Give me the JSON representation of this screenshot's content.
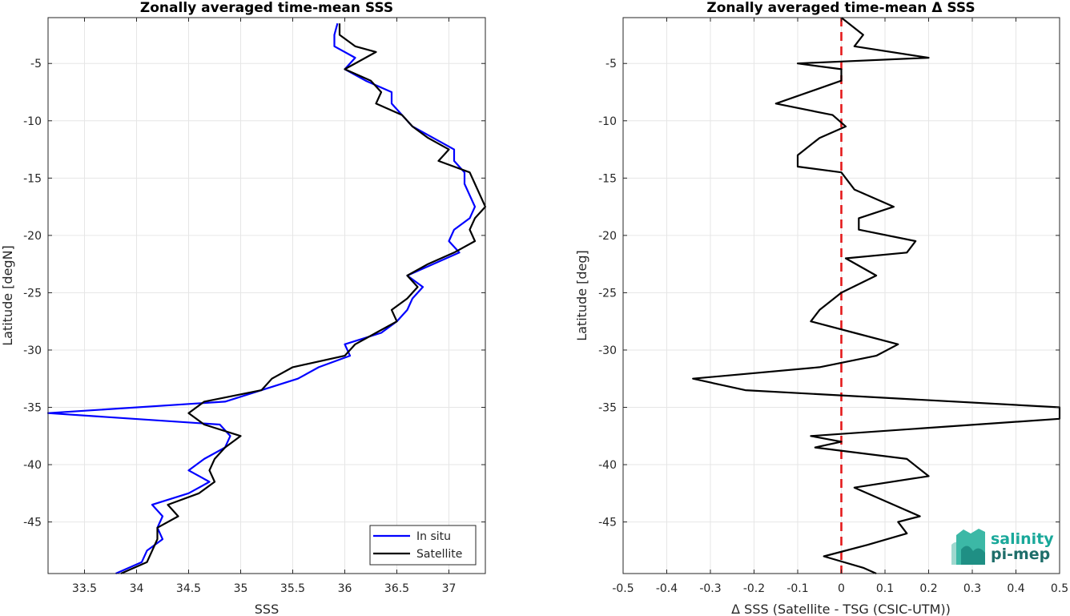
{
  "chart_data": [
    {
      "type": "line",
      "title": "Zonally averaged time-mean SSS",
      "xlabel": "SSS",
      "ylabel": "Latitude [degN]",
      "xlim": [
        33.15,
        37.35
      ],
      "ylim": [
        -49.5,
        -1
      ],
      "xticks": [
        33.5,
        34,
        34.5,
        35,
        35.5,
        36,
        36.5,
        37
      ],
      "xtick_labels": [
        "33.5",
        "34",
        "34.5",
        "35",
        "35.5",
        "36",
        "36.5",
        "37"
      ],
      "yticks": [
        -5,
        -10,
        -15,
        -20,
        -25,
        -30,
        -35,
        -40,
        -45
      ],
      "ytick_labels": [
        "-5",
        "-10",
        "-15",
        "-20",
        "-25",
        "-30",
        "-35",
        "-40",
        "-45"
      ],
      "grid": true,
      "legend_position": "bottom-right",
      "series": [
        {
          "name": "In situ",
          "color": "#0000ff",
          "points": [
            [
              35.93,
              -1.5
            ],
            [
              35.9,
              -2.5
            ],
            [
              35.9,
              -3.5
            ],
            [
              36.1,
              -4.5
            ],
            [
              36.0,
              -5.5
            ],
            [
              36.2,
              -6.5
            ],
            [
              36.45,
              -7.5
            ],
            [
              36.45,
              -8.5
            ],
            [
              36.55,
              -9.5
            ],
            [
              36.65,
              -10.5
            ],
            [
              36.85,
              -11.5
            ],
            [
              37.05,
              -12.5
            ],
            [
              37.05,
              -13.5
            ],
            [
              37.15,
              -14.5
            ],
            [
              37.15,
              -15.5
            ],
            [
              37.2,
              -16.5
            ],
            [
              37.25,
              -17.5
            ],
            [
              37.2,
              -18.5
            ],
            [
              37.05,
              -19.5
            ],
            [
              37.0,
              -20.5
            ],
            [
              37.1,
              -21.5
            ],
            [
              36.85,
              -22.5
            ],
            [
              36.6,
              -23.5
            ],
            [
              36.75,
              -24.5
            ],
            [
              36.65,
              -25.5
            ],
            [
              36.6,
              -26.5
            ],
            [
              36.5,
              -27.5
            ],
            [
              36.35,
              -28.5
            ],
            [
              36.0,
              -29.5
            ],
            [
              36.05,
              -30.5
            ],
            [
              35.75,
              -31.5
            ],
            [
              35.55,
              -32.5
            ],
            [
              35.2,
              -33.5
            ],
            [
              34.85,
              -34.5
            ],
            [
              33.15,
              -35.5
            ],
            [
              34.8,
              -36.5
            ],
            [
              34.9,
              -37.5
            ],
            [
              34.85,
              -38.5
            ],
            [
              34.65,
              -39.5
            ],
            [
              34.5,
              -40.5
            ],
            [
              34.7,
              -41.5
            ],
            [
              34.5,
              -42.5
            ],
            [
              34.15,
              -43.5
            ],
            [
              34.25,
              -44.5
            ],
            [
              34.2,
              -45.5
            ],
            [
              34.25,
              -46.5
            ],
            [
              34.1,
              -47.5
            ],
            [
              34.05,
              -48.5
            ],
            [
              33.8,
              -49.5
            ]
          ]
        },
        {
          "name": "Satellite",
          "color": "#000000",
          "points": [
            [
              35.95,
              -1.5
            ],
            [
              35.95,
              -2.5
            ],
            [
              36.1,
              -3.5
            ],
            [
              36.3,
              -4.0
            ],
            [
              36.0,
              -5.5
            ],
            [
              36.25,
              -6.5
            ],
            [
              36.35,
              -7.5
            ],
            [
              36.3,
              -8.5
            ],
            [
              36.55,
              -9.5
            ],
            [
              36.65,
              -10.5
            ],
            [
              36.8,
              -11.5
            ],
            [
              37.0,
              -12.5
            ],
            [
              36.9,
              -13.5
            ],
            [
              37.2,
              -14.5
            ],
            [
              37.25,
              -15.5
            ],
            [
              37.3,
              -16.5
            ],
            [
              37.35,
              -17.5
            ],
            [
              37.25,
              -18.5
            ],
            [
              37.2,
              -19.5
            ],
            [
              37.25,
              -20.5
            ],
            [
              37.05,
              -21.5
            ],
            [
              36.8,
              -22.5
            ],
            [
              36.6,
              -23.5
            ],
            [
              36.7,
              -24.5
            ],
            [
              36.6,
              -25.5
            ],
            [
              36.45,
              -26.5
            ],
            [
              36.5,
              -27.5
            ],
            [
              36.3,
              -28.5
            ],
            [
              36.1,
              -29.5
            ],
            [
              36.0,
              -30.5
            ],
            [
              35.5,
              -31.5
            ],
            [
              35.3,
              -32.5
            ],
            [
              35.2,
              -33.5
            ],
            [
              34.65,
              -34.5
            ],
            [
              34.5,
              -35.5
            ],
            [
              34.65,
              -36.5
            ],
            [
              35.0,
              -37.5
            ],
            [
              34.85,
              -38.5
            ],
            [
              34.75,
              -39.5
            ],
            [
              34.7,
              -40.5
            ],
            [
              34.75,
              -41.5
            ],
            [
              34.6,
              -42.5
            ],
            [
              34.3,
              -43.5
            ],
            [
              34.4,
              -44.5
            ],
            [
              34.2,
              -45.5
            ],
            [
              34.2,
              -46.5
            ],
            [
              34.15,
              -47.5
            ],
            [
              34.1,
              -48.5
            ],
            [
              33.85,
              -49.5
            ]
          ]
        }
      ]
    },
    {
      "type": "line",
      "title": "Zonally averaged time-mean Δ SSS",
      "xlabel": "Δ SSS (Satellite - TSG (CSIC-UTM))",
      "ylabel": "Latitude [deg]",
      "xlim": [
        -0.5,
        0.5
      ],
      "ylim": [
        -49.5,
        -1
      ],
      "xticks": [
        -0.5,
        -0.4,
        -0.3,
        -0.2,
        -0.1,
        0,
        0.1,
        0.2,
        0.3,
        0.4,
        0.5
      ],
      "xtick_labels": [
        "-0.5",
        "-0.4",
        "-0.3",
        "-0.2",
        "-0.1",
        "0",
        "0.1",
        "0.2",
        "0.3",
        "0.4",
        "0.5"
      ],
      "yticks": [
        -5,
        -10,
        -15,
        -20,
        -25,
        -30,
        -35,
        -40,
        -45
      ],
      "ytick_labels": [
        "-5",
        "-10",
        "-15",
        "-20",
        "-25",
        "-30",
        "-35",
        "-40",
        "-45"
      ],
      "grid": true,
      "reference_line": {
        "x": 0,
        "color": "#e41a1c",
        "style": "dashed"
      },
      "series": [
        {
          "color": "#000000",
          "points": [
            [
              0.0,
              -1.0
            ],
            [
              0.05,
              -2.5
            ],
            [
              0.03,
              -3.5
            ],
            [
              0.2,
              -4.5
            ],
            [
              -0.1,
              -5.0
            ],
            [
              0.0,
              -5.5
            ],
            [
              0.0,
              -6.5
            ],
            [
              -0.15,
              -8.5
            ],
            [
              -0.02,
              -9.5
            ],
            [
              0.01,
              -10.5
            ],
            [
              -0.05,
              -11.5
            ],
            [
              -0.1,
              -13.0
            ],
            [
              -0.1,
              -14.0
            ],
            [
              0.0,
              -14.5
            ],
            [
              0.03,
              -16.0
            ],
            [
              0.12,
              -17.5
            ],
            [
              0.04,
              -18.5
            ],
            [
              0.04,
              -19.5
            ],
            [
              0.17,
              -20.5
            ],
            [
              0.15,
              -21.5
            ],
            [
              0.01,
              -22.0
            ],
            [
              0.08,
              -23.5
            ],
            [
              0.0,
              -25.0
            ],
            [
              -0.05,
              -26.5
            ],
            [
              -0.07,
              -27.5
            ],
            [
              0.03,
              -28.5
            ],
            [
              0.13,
              -29.5
            ],
            [
              0.08,
              -30.5
            ],
            [
              -0.05,
              -31.5
            ],
            [
              -0.34,
              -32.5
            ],
            [
              -0.22,
              -33.5
            ],
            [
              0.5,
              -35.0
            ],
            [
              0.5,
              -36.0
            ],
            [
              -0.07,
              -37.5
            ],
            [
              0.0,
              -38.0
            ],
            [
              -0.06,
              -38.5
            ],
            [
              0.15,
              -39.5
            ],
            [
              0.2,
              -41.0
            ],
            [
              0.03,
              -42.0
            ],
            [
              0.18,
              -44.5
            ],
            [
              0.13,
              -45.0
            ],
            [
              0.15,
              -46.0
            ],
            [
              0.06,
              -47.0
            ],
            [
              -0.04,
              -48.0
            ],
            [
              0.05,
              -49.0
            ],
            [
              0.08,
              -49.5
            ]
          ]
        }
      ]
    }
  ],
  "logo": {
    "line1": "salinity",
    "line2": "pi-mep",
    "color1": "#19a89a",
    "color2": "#1e6e6a"
  }
}
